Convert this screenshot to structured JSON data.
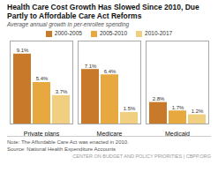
{
  "chart_data": {
    "type": "bar",
    "title": "Health Care Cost Growth Has Slowed Since 2010, Due Partly to Affordable Care Act Reforms",
    "subtitle": "Average annual growth in per-enrollee spending",
    "categories": [
      "Private plans",
      "Medicare",
      "Medicaid"
    ],
    "series": [
      {
        "name": "2000-2005",
        "color": "#c8792a",
        "values": [
          9.1,
          7.1,
          2.8
        ],
        "value_labels": [
          "9.1%",
          "7.1%",
          "2.8%"
        ]
      },
      {
        "name": "2005-2010",
        "color": "#e8a840",
        "values": [
          5.4,
          6.4,
          1.7
        ],
        "value_labels": [
          "5.4%",
          "6.4%",
          "1.7%"
        ]
      },
      {
        "name": "2010-2017",
        "color": "#f0d080",
        "values": [
          3.7,
          1.5,
          1.2
        ],
        "value_labels": [
          "3.7%",
          "1.5%",
          "1.2%"
        ]
      }
    ],
    "ylim": [
      0,
      10.8
    ],
    "data_labels": true,
    "tick_labels": "x",
    "grid": false,
    "legend": "top",
    "annotations": [
      "Note: The Affordable Care Act was enacted in 2010.",
      "Source: National Health Expenditure Accounts",
      "CENTER ON BUDGET AND POLICY PRIORITIES | CBPP.ORG"
    ]
  }
}
